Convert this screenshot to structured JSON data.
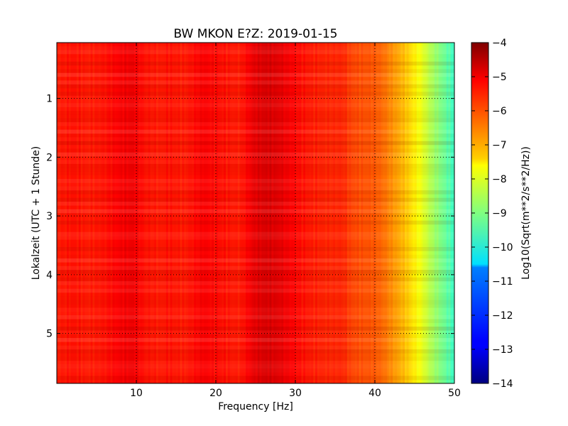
{
  "chart_data": {
    "type": "heatmap",
    "title": "BW MKON E?Z: 2019-01-15",
    "xlabel": "Frequency [Hz]",
    "ylabel": "Lokalzeit (UTC + 1 Stunde)",
    "xlim": [
      0,
      50
    ],
    "ylim": [
      5.85,
      0.05
    ],
    "y_inverted": true,
    "xticks": [
      10,
      20,
      30,
      40,
      50
    ],
    "yticks": [
      1,
      2,
      3,
      4,
      5
    ],
    "grid": true,
    "colormap": "jet",
    "colorbar": {
      "label": "Log10(Sqrt(m**2/s**2/Hz))",
      "range": [
        -14,
        -4
      ],
      "ticks": [
        -4,
        -5,
        -6,
        -7,
        -8,
        -9,
        -10,
        -11,
        -12,
        -13,
        -14
      ]
    },
    "spectrum_profile": {
      "frequency_hz": [
        0,
        2,
        4,
        6,
        8,
        9.5,
        11,
        13,
        14,
        16,
        18.5,
        21,
        23,
        25,
        26.5,
        28,
        30,
        32,
        34,
        36,
        37,
        38,
        40,
        41,
        42,
        43,
        44,
        45,
        46,
        47,
        48,
        49,
        50
      ],
      "log10_amplitude": [
        -5.5,
        -5.4,
        -5.5,
        -5.4,
        -5.2,
        -5.1,
        -5.4,
        -5.5,
        -5.4,
        -5.5,
        -5.2,
        -5.4,
        -5.5,
        -5.0,
        -4.9,
        -5.0,
        -5.3,
        -5.5,
        -5.6,
        -5.6,
        -5.9,
        -6.0,
        -6.1,
        -6.3,
        -6.6,
        -6.9,
        -7.2,
        -7.6,
        -8.0,
        -8.5,
        -8.9,
        -9.3,
        -9.7
      ]
    }
  }
}
